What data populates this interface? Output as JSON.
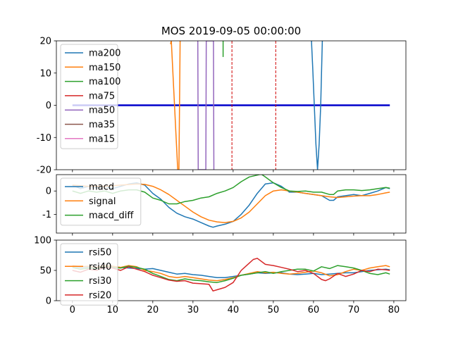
{
  "chart_data": [
    {
      "type": "line",
      "title": "MOS 2019-09-05 00:00:00",
      "xlim": [
        -4,
        83
      ],
      "ylim": [
        -20,
        20
      ],
      "yticks": [
        -20,
        -10,
        0,
        10,
        20
      ],
      "legend_position": "upper-left",
      "series": [
        {
          "name": "ma200",
          "color": "#1f77b4",
          "x": [
            59.5,
            59.8,
            60.2,
            60.6,
            61.0,
            61.4,
            61.8,
            62.2
          ],
          "y": [
            20,
            12,
            0,
            -12,
            -20,
            -12,
            0,
            20
          ]
        },
        {
          "name": "ma150",
          "color": "#ff7f0e",
          "x": [
            24.4,
            24.6,
            26.2,
            26.5,
            26.8
          ],
          "y": [
            19,
            20,
            -20,
            -20,
            20
          ]
        },
        {
          "name": "ma100",
          "color": "#2ca02c",
          "x": [
            37.5,
            37.5
          ],
          "y": [
            20,
            15
          ]
        },
        {
          "name": "ma75",
          "color": "#d62728",
          "x": [],
          "y": []
        },
        {
          "name": "ma50",
          "color": "#9467bd",
          "x": [
            31.2,
            31.3,
            33.2,
            33.3,
            35.1,
            35.2
          ],
          "y": [
            20,
            -20,
            -20,
            20,
            20,
            -20
          ]
        },
        {
          "name": "ma35",
          "color": "#8c564b",
          "x": [],
          "y": []
        },
        {
          "name": "ma15",
          "color": "#e377c2",
          "x": [],
          "y": []
        }
      ],
      "baseline": {
        "color": "#0000cc",
        "x": [
          0,
          79
        ],
        "y": [
          0,
          0
        ]
      },
      "vlines": [
        {
          "x": 39.7,
          "color": "#d00000"
        },
        {
          "x": 50.6,
          "color": "#d00000"
        }
      ]
    },
    {
      "type": "line",
      "xlim": [
        -4,
        83
      ],
      "ylim": [
        -1.8,
        0.7
      ],
      "yticks": [
        -1,
        0
      ],
      "legend_position": "upper-left",
      "series": [
        {
          "name": "macd",
          "color": "#1f77b4",
          "x": [
            0,
            2,
            4,
            6,
            8,
            10,
            12,
            14,
            16,
            18,
            20,
            22,
            24,
            26,
            28,
            30,
            32,
            34,
            35,
            36,
            38,
            40,
            42,
            44,
            46,
            48,
            50,
            52,
            54,
            56,
            58,
            60,
            62,
            64,
            65,
            66,
            68,
            70,
            72,
            74,
            76,
            78,
            79
          ],
          "y": [
            0.25,
            0.1,
            0.2,
            0.15,
            0.2,
            0.1,
            0.2,
            0.3,
            0.35,
            0.25,
            -0.1,
            -0.35,
            -0.7,
            -0.95,
            -1.1,
            -1.2,
            -1.35,
            -1.5,
            -1.55,
            -1.5,
            -1.42,
            -1.3,
            -1.0,
            -0.6,
            -0.1,
            0.3,
            0.35,
            0.2,
            -0.05,
            -0.05,
            -0.1,
            -0.15,
            -0.2,
            -0.4,
            -0.4,
            -0.25,
            -0.2,
            -0.15,
            -0.2,
            -0.1,
            0.0,
            0.15,
            0.1
          ]
        },
        {
          "name": "signal",
          "color": "#ff7f0e",
          "x": [
            0,
            4,
            8,
            12,
            16,
            18,
            20,
            22,
            24,
            26,
            28,
            30,
            32,
            34,
            36,
            38,
            40,
            42,
            44,
            46,
            48,
            50,
            52,
            54,
            56,
            58,
            60,
            62,
            64,
            66,
            68,
            70,
            72,
            74,
            76,
            78,
            79
          ],
          "y": [
            0.25,
            0.2,
            0.2,
            0.25,
            0.3,
            0.28,
            0.2,
            0.05,
            -0.15,
            -0.4,
            -0.65,
            -0.9,
            -1.1,
            -1.25,
            -1.32,
            -1.35,
            -1.3,
            -1.15,
            -0.9,
            -0.55,
            -0.2,
            0.0,
            0.05,
            0.0,
            -0.05,
            -0.1,
            -0.15,
            -0.2,
            -0.25,
            -0.28,
            -0.25,
            -0.22,
            -0.2,
            -0.2,
            -0.15,
            -0.08,
            -0.05
          ]
        },
        {
          "name": "macd_diff",
          "color": "#2ca02c",
          "x": [
            0,
            2,
            4,
            6,
            8,
            10,
            12,
            14,
            16,
            18,
            20,
            22,
            24,
            26,
            28,
            30,
            32,
            34,
            36,
            38,
            40,
            42,
            44,
            46,
            47,
            48,
            50,
            52,
            54,
            56,
            58,
            60,
            62,
            64,
            65,
            66,
            68,
            70,
            72,
            74,
            76,
            78,
            79
          ],
          "y": [
            0.0,
            -0.1,
            0.0,
            -0.05,
            0.0,
            -0.1,
            0.0,
            0.05,
            0.05,
            -0.05,
            -0.3,
            -0.4,
            -0.55,
            -0.55,
            -0.45,
            -0.4,
            -0.3,
            -0.25,
            -0.1,
            0.0,
            0.15,
            0.4,
            0.6,
            0.68,
            0.72,
            0.6,
            0.35,
            0.15,
            0.0,
            -0.02,
            0.0,
            -0.05,
            -0.05,
            -0.15,
            -0.15,
            0.0,
            0.05,
            0.05,
            0.02,
            0.05,
            0.1,
            0.15,
            0.12
          ]
        }
      ]
    },
    {
      "type": "line",
      "xlabel_ticks": [
        0,
        10,
        20,
        30,
        40,
        50,
        60,
        70,
        80
      ],
      "xlim": [
        -4,
        83
      ],
      "ylim": [
        0,
        100
      ],
      "yticks": [
        0,
        50,
        100
      ],
      "legend_position": "upper-left",
      "series": [
        {
          "name": "rsi50",
          "color": "#1f77b4",
          "x": [
            0,
            2,
            4,
            6,
            8,
            10,
            12,
            14,
            16,
            18,
            20,
            22,
            24,
            26,
            28,
            30,
            32,
            34,
            36,
            38,
            40,
            42,
            44,
            46,
            48,
            50,
            52,
            54,
            56,
            58,
            60,
            62,
            64,
            66,
            68,
            70,
            72,
            74,
            76,
            78,
            79
          ],
          "y": [
            57,
            55,
            56,
            55,
            57,
            56,
            55,
            54,
            53,
            52,
            53,
            50,
            47,
            44,
            45,
            43,
            42,
            40,
            38,
            38,
            40,
            42,
            44,
            46,
            45,
            46,
            46,
            44,
            43,
            44,
            45,
            43,
            44,
            45,
            46,
            46,
            48,
            50,
            51,
            52,
            51
          ]
        },
        {
          "name": "rsi40",
          "color": "#ff7f0e",
          "x": [
            0,
            2,
            4,
            6,
            8,
            10,
            12,
            14,
            16,
            18,
            20,
            22,
            24,
            26,
            28,
            30,
            32,
            34,
            36,
            38,
            40,
            42,
            44,
            46,
            48,
            50,
            52,
            54,
            56,
            58,
            60,
            62,
            64,
            66,
            68,
            70,
            72,
            74,
            76,
            78,
            79
          ],
          "y": [
            58,
            56,
            57,
            55,
            58,
            57,
            55,
            58,
            56,
            50,
            48,
            45,
            40,
            38,
            40,
            38,
            36,
            34,
            33,
            35,
            38,
            42,
            45,
            48,
            46,
            47,
            45,
            44,
            45,
            47,
            49,
            46,
            41,
            43,
            48,
            52,
            50,
            54,
            56,
            58,
            56
          ]
        },
        {
          "name": "rsi30",
          "color": "#2ca02c",
          "x": [
            0,
            2,
            4,
            6,
            8,
            10,
            12,
            14,
            16,
            18,
            20,
            22,
            24,
            26,
            28,
            30,
            32,
            34,
            36,
            38,
            40,
            42,
            44,
            46,
            48,
            50,
            52,
            54,
            56,
            58,
            60,
            62,
            64,
            66,
            68,
            70,
            72,
            74,
            76,
            78,
            79
          ],
          "y": [
            55,
            52,
            54,
            53,
            56,
            55,
            54,
            57,
            55,
            52,
            45,
            40,
            35,
            33,
            36,
            34,
            33,
            31,
            30,
            33,
            37,
            42,
            44,
            46,
            48,
            45,
            48,
            50,
            52,
            52,
            49,
            56,
            53,
            58,
            56,
            54,
            50,
            45,
            43,
            46,
            44
          ]
        },
        {
          "name": "rsi20",
          "color": "#d62728",
          "x": [
            0,
            2,
            4,
            6,
            8,
            10,
            12,
            14,
            16,
            18,
            20,
            22,
            24,
            26,
            28,
            30,
            32,
            34,
            35,
            36,
            38,
            40,
            42,
            44,
            45,
            46,
            48,
            50,
            52,
            54,
            56,
            58,
            60,
            62,
            63,
            64,
            66,
            68,
            70,
            72,
            74,
            76,
            78,
            79
          ],
          "y": [
            50,
            47,
            52,
            50,
            55,
            54,
            50,
            56,
            52,
            48,
            42,
            38,
            34,
            32,
            33,
            29,
            28,
            27,
            16,
            18,
            22,
            30,
            50,
            62,
            68,
            70,
            60,
            58,
            55,
            52,
            48,
            50,
            45,
            35,
            33,
            36,
            45,
            40,
            44,
            50,
            48,
            52,
            51,
            50
          ]
        }
      ]
    }
  ]
}
